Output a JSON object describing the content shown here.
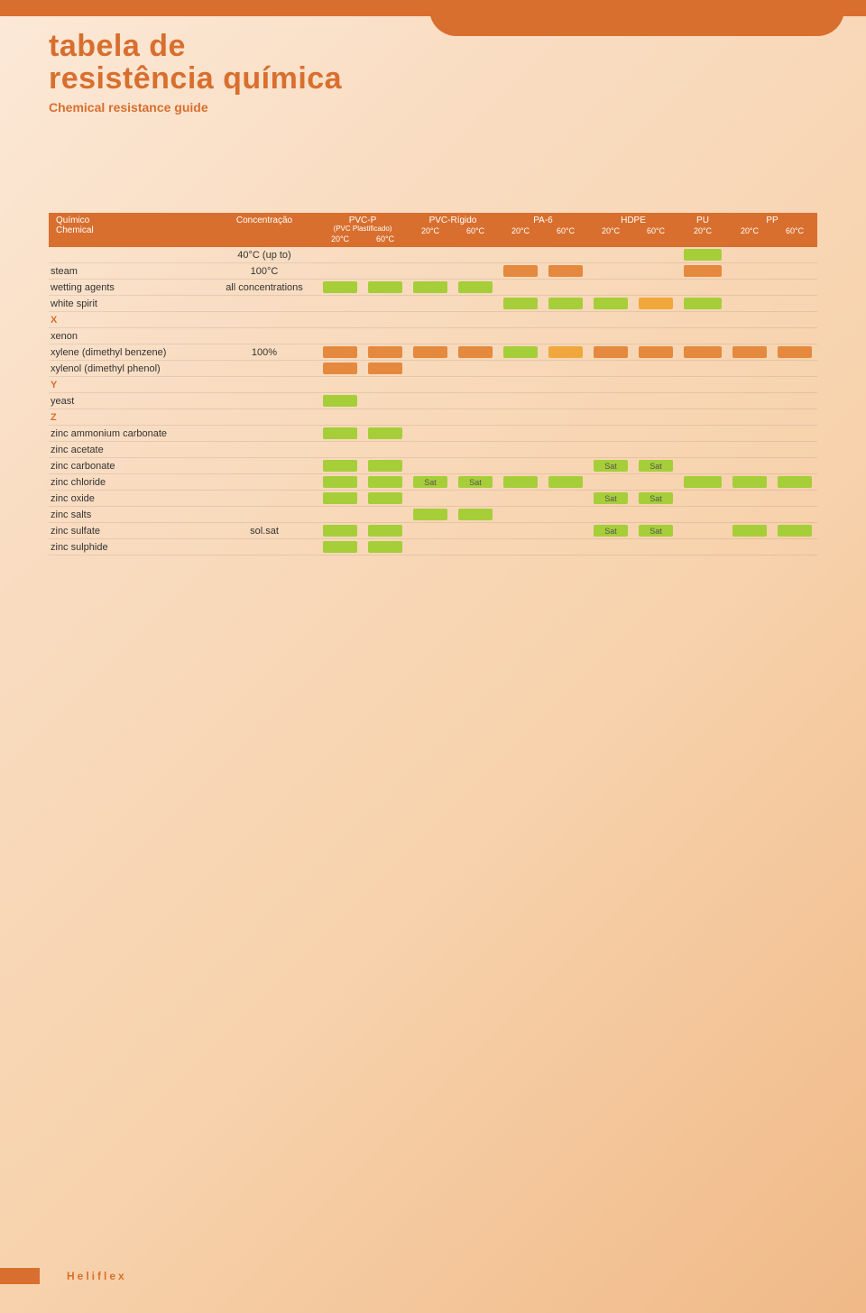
{
  "title_line1": "tabela de",
  "title_line2": "resistência química",
  "subtitle": "Chemical resistance guide",
  "brand": "Heliflex",
  "header": {
    "chemical_pt": "Químico",
    "chemical_en": "Chemical",
    "concentration": "Concentração",
    "materials": [
      {
        "name": "PVC-P",
        "sub": "(PVC Plastificado)",
        "temps": [
          "20°C",
          "60°C"
        ]
      },
      {
        "name": "PVC-Rígido",
        "sub": "",
        "temps": [
          "20°C",
          "60°C"
        ]
      },
      {
        "name": "PA-6",
        "sub": "",
        "temps": [
          "20°C",
          "60°C"
        ]
      },
      {
        "name": "HDPE",
        "sub": "",
        "temps": [
          "20°C",
          "60°C"
        ]
      },
      {
        "name": "PU",
        "sub": "",
        "temps": [
          "20°C"
        ]
      },
      {
        "name": "PP",
        "sub": "",
        "temps": [
          "20°C",
          "60°C"
        ]
      }
    ]
  },
  "colors": {
    "green": "#a6ce39",
    "orange": "#e4893d",
    "amber": "#f0a83e",
    "brand": "#d86f2e"
  },
  "rows": [
    {
      "chem": "",
      "conc": "40°C (up to)",
      "cells": [
        "",
        "",
        "",
        "",
        "",
        "",
        "",
        "",
        "green",
        "",
        ""
      ]
    },
    {
      "chem": "steam",
      "conc": "100°C",
      "cells": [
        "",
        "",
        "",
        "",
        "orange",
        "orange",
        "",
        "",
        "orange",
        "",
        ""
      ]
    },
    {
      "chem": "wetting agents",
      "conc": "all concentrations",
      "cells": [
        "green",
        "green",
        "green",
        "green",
        "",
        "",
        "",
        "",
        "",
        "",
        ""
      ]
    },
    {
      "chem": "white spirit",
      "conc": "",
      "cells": [
        "",
        "",
        "",
        "",
        "green",
        "green",
        "green",
        "amber",
        "green",
        "",
        ""
      ]
    },
    {
      "section": "X"
    },
    {
      "chem": "xenon",
      "conc": "",
      "cells": [
        "",
        "",
        "",
        "",
        "",
        "",
        "",
        "",
        "",
        "",
        ""
      ]
    },
    {
      "chem": "xylene (dimethyl benzene)",
      "conc": "100%",
      "cells": [
        "orange",
        "orange",
        "orange",
        "orange",
        "green",
        "amber",
        "orange",
        "orange",
        "orange",
        "orange",
        "orange"
      ]
    },
    {
      "chem": "xylenol (dimethyl phenol)",
      "conc": "",
      "cells": [
        "orange",
        "orange",
        "",
        "",
        "",
        "",
        "",
        "",
        "",
        "",
        ""
      ]
    },
    {
      "section": "Y"
    },
    {
      "chem": "yeast",
      "conc": "",
      "cells": [
        "green",
        "",
        "",
        "",
        "",
        "",
        "",
        "",
        "",
        "",
        ""
      ]
    },
    {
      "section": "Z"
    },
    {
      "chem": "zinc ammonium carbonate",
      "conc": "",
      "cells": [
        "green",
        "green",
        "",
        "",
        "",
        "",
        "",
        "",
        "",
        "",
        ""
      ]
    },
    {
      "chem": "zinc acetate",
      "conc": "",
      "cells": [
        "",
        "",
        "",
        "",
        "",
        "",
        "",
        "",
        "",
        "",
        ""
      ]
    },
    {
      "chem": "zinc carbonate",
      "conc": "",
      "cells": [
        "green",
        "green",
        "",
        "",
        "",
        "",
        "green:Sat",
        "green:Sat",
        "",
        "",
        ""
      ]
    },
    {
      "chem": "zinc chloride",
      "conc": "",
      "cells": [
        "green",
        "green",
        "green:Sat",
        "green:Sat",
        "green",
        "green",
        "",
        "",
        "green",
        "green",
        "green"
      ]
    },
    {
      "chem": "zinc oxide",
      "conc": "",
      "cells": [
        "green",
        "green",
        "",
        "",
        "",
        "",
        "green:Sat",
        "green:Sat",
        "",
        "",
        ""
      ]
    },
    {
      "chem": "zinc salts",
      "conc": "",
      "cells": [
        "",
        "",
        "green",
        "green",
        "",
        "",
        "",
        "",
        "",
        "",
        ""
      ]
    },
    {
      "chem": "zinc sulfate",
      "conc": "sol.sat",
      "cells": [
        "green",
        "green",
        "",
        "",
        "",
        "",
        "green:Sat",
        "green:Sat",
        "",
        "green",
        "green"
      ]
    },
    {
      "chem": "zinc sulphide",
      "conc": "",
      "cells": [
        "green",
        "green",
        "",
        "",
        "",
        "",
        "",
        "",
        "",
        "",
        ""
      ]
    }
  ]
}
